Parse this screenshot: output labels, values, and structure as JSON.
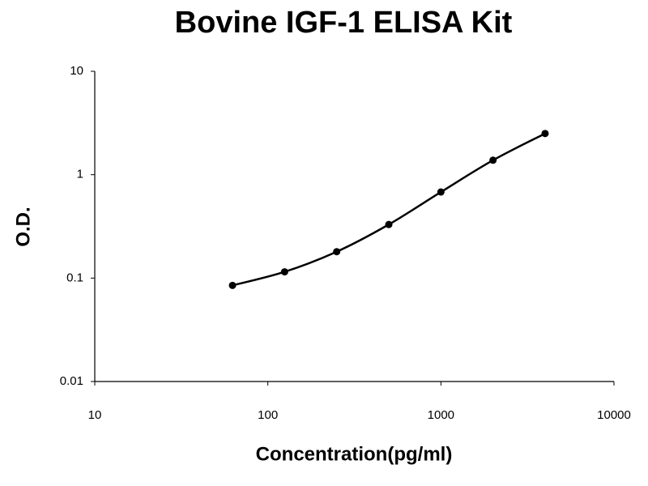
{
  "chart_data": {
    "type": "scatter",
    "title": "Bovine IGF-1 ELISA Kit",
    "x_label": "Concentration(pg/ml)",
    "y_label": "O.D.",
    "x": [
      62.5,
      125,
      250,
      500,
      1000,
      2000,
      4000
    ],
    "values": [
      0.085,
      0.115,
      0.18,
      0.33,
      0.68,
      1.38,
      2.5
    ],
    "color": "#000000",
    "x_log": true,
    "y_log": true,
    "fit_line": true,
    "xlim": [
      10,
      10000
    ],
    "ylim": [
      0.01,
      10
    ],
    "xticks": [
      10,
      100,
      1000,
      10000
    ],
    "yticks": [
      0.01,
      0.1,
      1,
      10
    ]
  }
}
